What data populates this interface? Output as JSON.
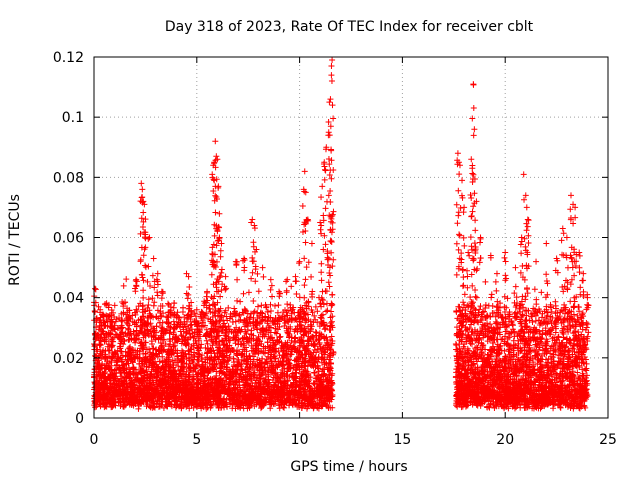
{
  "chart_data": {
    "type": "scatter",
    "title": "Day 318 of 2023, Rate Of TEC Index for receiver cblt",
    "xlabel": "GPS time / hours",
    "ylabel": "ROTI / TECUs",
    "xlim": [
      0,
      25
    ],
    "ylim": [
      0,
      0.12
    ],
    "x_ticks": [
      "0",
      "5",
      "10",
      "15",
      "20",
      "25"
    ],
    "y_ticks": [
      "0",
      "0.02",
      "0.04",
      "0.06",
      "0.08",
      "0.1",
      "0.12"
    ],
    "x_tick_values": [
      0,
      5,
      10,
      15,
      20,
      25
    ],
    "y_tick_values": [
      0,
      0.02,
      0.04,
      0.06,
      0.08,
      0.1,
      0.12
    ],
    "grid": true,
    "marker": "plus",
    "color": "#ff0000",
    "series": [
      {
        "segments": [
          {
            "x_start": 0.0,
            "x_end": 11.6
          },
          {
            "x_start": 17.6,
            "x_end": 24.0
          }
        ],
        "points": [
          [
            0.05,
            0.043
          ],
          [
            0.3,
            0.036
          ],
          [
            0.8,
            0.032
          ],
          [
            1.3,
            0.03
          ],
          [
            1.7,
            0.033
          ],
          [
            2.05,
            0.046
          ],
          [
            2.3,
            0.078
          ],
          [
            2.35,
            0.076
          ],
          [
            2.4,
            0.072
          ],
          [
            2.45,
            0.071
          ],
          [
            2.5,
            0.061
          ],
          [
            2.7,
            0.06
          ],
          [
            2.9,
            0.053
          ],
          [
            3.1,
            0.048
          ],
          [
            3.3,
            0.042
          ],
          [
            3.6,
            0.038
          ],
          [
            4.0,
            0.034
          ],
          [
            4.5,
            0.048
          ],
          [
            4.6,
            0.047
          ],
          [
            5.0,
            0.036
          ],
          [
            5.5,
            0.042
          ],
          [
            5.75,
            0.081
          ],
          [
            5.8,
            0.084
          ],
          [
            5.85,
            0.085
          ],
          [
            5.9,
            0.092
          ],
          [
            5.95,
            0.087
          ],
          [
            6.0,
            0.086
          ],
          [
            6.05,
            0.077
          ],
          [
            6.1,
            0.06
          ],
          [
            6.2,
            0.058
          ],
          [
            6.4,
            0.047
          ],
          [
            6.9,
            0.052
          ],
          [
            7.3,
            0.053
          ],
          [
            7.7,
            0.066
          ],
          [
            7.8,
            0.064
          ],
          [
            7.9,
            0.056
          ],
          [
            8.2,
            0.05
          ],
          [
            8.6,
            0.046
          ],
          [
            9.0,
            0.042
          ],
          [
            9.4,
            0.046
          ],
          [
            9.8,
            0.047
          ],
          [
            10.0,
            0.052
          ],
          [
            10.2,
            0.076
          ],
          [
            10.25,
            0.082
          ],
          [
            10.3,
            0.075
          ],
          [
            10.4,
            0.066
          ],
          [
            10.6,
            0.058
          ],
          [
            11.0,
            0.065
          ],
          [
            11.1,
            0.077
          ],
          [
            11.2,
            0.085
          ],
          [
            11.3,
            0.09
          ],
          [
            11.4,
            0.094
          ],
          [
            11.45,
            0.105
          ],
          [
            11.5,
            0.106
          ],
          [
            11.55,
            0.117
          ],
          [
            11.58,
            0.119
          ],
          [
            11.6,
            0.104
          ],
          [
            17.7,
            0.088
          ],
          [
            17.75,
            0.085
          ],
          [
            17.8,
            0.084
          ],
          [
            17.9,
            0.079
          ],
          [
            18.0,
            0.07
          ],
          [
            18.2,
            0.055
          ],
          [
            18.35,
            0.086
          ],
          [
            18.4,
            0.083
          ],
          [
            18.45,
            0.111
          ],
          [
            18.5,
            0.096
          ],
          [
            18.6,
            0.072
          ],
          [
            18.8,
            0.06
          ],
          [
            19.3,
            0.054
          ],
          [
            19.6,
            0.048
          ],
          [
            20.0,
            0.055
          ],
          [
            20.5,
            0.05
          ],
          [
            20.8,
            0.06
          ],
          [
            20.9,
            0.081
          ],
          [
            21.0,
            0.074
          ],
          [
            21.05,
            0.07
          ],
          [
            21.1,
            0.066
          ],
          [
            21.5,
            0.052
          ],
          [
            22.0,
            0.058
          ],
          [
            22.5,
            0.053
          ],
          [
            22.8,
            0.063
          ],
          [
            23.0,
            0.06
          ],
          [
            23.2,
            0.074
          ],
          [
            23.3,
            0.071
          ],
          [
            23.4,
            0.07
          ],
          [
            23.6,
            0.055
          ],
          [
            23.8,
            0.048
          ],
          [
            24.0,
            0.04
          ]
        ]
      }
    ]
  }
}
